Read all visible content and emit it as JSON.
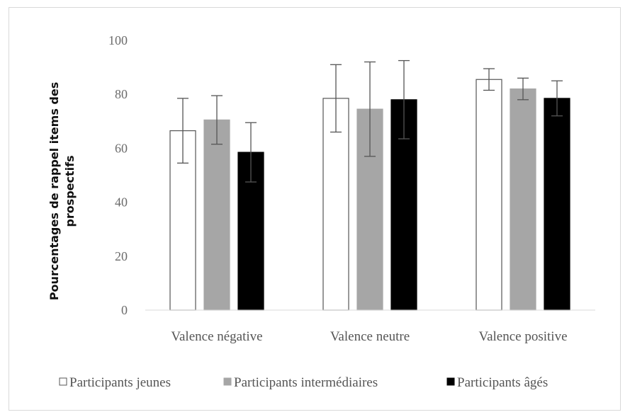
{
  "chart_data": {
    "type": "bar",
    "title": "",
    "xlabel": "",
    "ylabel_lines": [
      "Pourcentages de rappel items des",
      "prospectifs"
    ],
    "ylim": [
      0,
      100
    ],
    "yticks": [
      0,
      20,
      40,
      60,
      80,
      100
    ],
    "categories": [
      "Valence négative",
      "Valence neutre",
      "Valence positive"
    ],
    "series": [
      {
        "name": "Participants jeunes",
        "fill": "#ffffff",
        "stroke": "#555555",
        "values": [
          66.5,
          78.5,
          85.5
        ],
        "errors": [
          12,
          12.5,
          4
        ]
      },
      {
        "name": "Participants intermédiaires",
        "fill": "#a6a6a6",
        "stroke": "#a6a6a6",
        "values": [
          70.5,
          74.5,
          82
        ],
        "errors": [
          9,
          17.5,
          4
        ]
      },
      {
        "name": "Participants âgés",
        "fill": "#000000",
        "stroke": "#000000",
        "values": [
          58.5,
          78,
          78.5
        ],
        "errors": [
          11,
          14.5,
          6.5
        ]
      }
    ],
    "grid": false,
    "legend_position": "bottom"
  }
}
